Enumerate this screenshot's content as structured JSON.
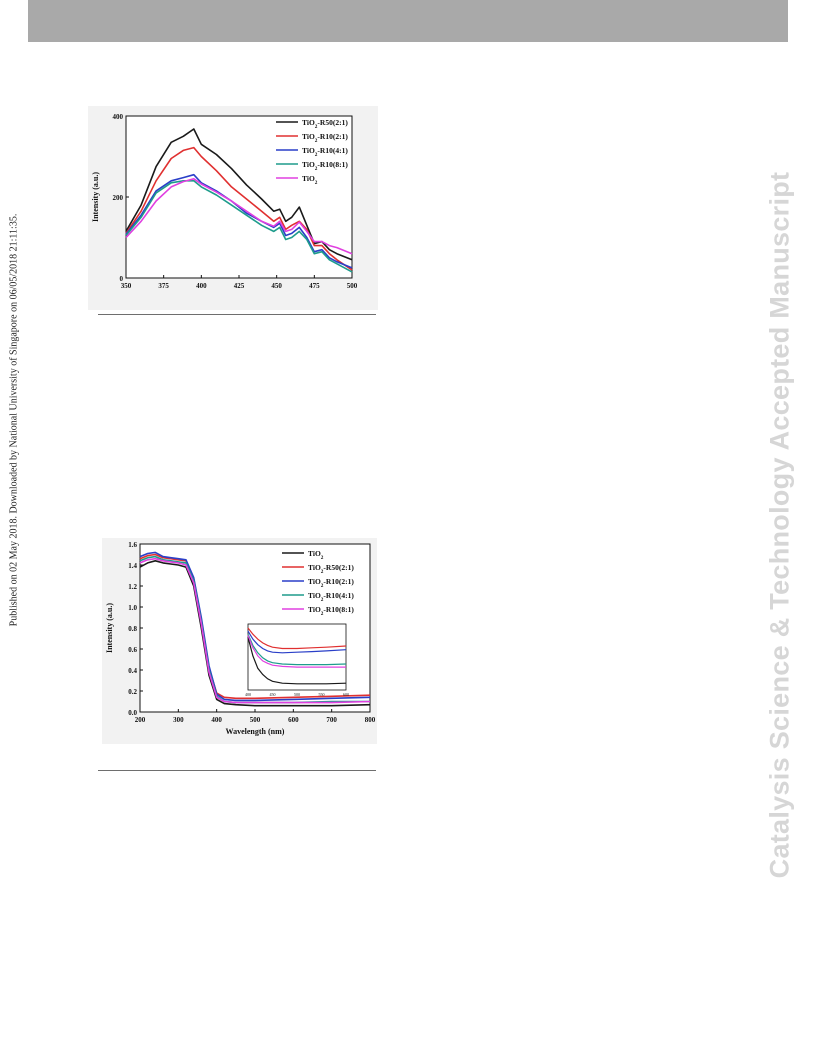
{
  "page": {
    "side_note": "Published on 02 May 2018. Downloaded by National University of Singapore on 06/05/2018 21:11:35.",
    "watermark": "Catalysis Science & Technology Accepted Manuscript"
  },
  "chart_data": [
    {
      "type": "line",
      "title": "",
      "xlabel": "",
      "ylabel": "Intensity (a.u.)",
      "xlim": [
        350,
        500
      ],
      "ylim": [
        0,
        400
      ],
      "xticks": [
        350,
        375,
        400,
        425,
        450,
        475,
        500
      ],
      "yticks": [
        0,
        200,
        400
      ],
      "legend_position": "top-right",
      "x": [
        350,
        360,
        370,
        380,
        388,
        395,
        400,
        410,
        420,
        430,
        440,
        448,
        452,
        456,
        460,
        465,
        470,
        475,
        480,
        485,
        490,
        500
      ],
      "series": [
        {
          "name": "TiO2-R50(2:1)",
          "color": "#1a1a1a",
          "values": [
            115,
            180,
            275,
            335,
            350,
            368,
            330,
            305,
            270,
            230,
            195,
            165,
            170,
            140,
            150,
            175,
            130,
            85,
            90,
            70,
            60,
            45
          ]
        },
        {
          "name": "TiO2-R10(2:1)",
          "color": "#e03030",
          "values": [
            110,
            165,
            240,
            295,
            315,
            322,
            300,
            265,
            225,
            195,
            165,
            140,
            150,
            120,
            130,
            140,
            120,
            80,
            80,
            60,
            45,
            20
          ]
        },
        {
          "name": "TiO2-R10(4:1)",
          "color": "#2a3fc8",
          "values": [
            108,
            155,
            215,
            240,
            248,
            255,
            235,
            215,
            190,
            160,
            140,
            125,
            135,
            105,
            110,
            125,
            100,
            65,
            70,
            50,
            40,
            25
          ]
        },
        {
          "name": "TiO2-R10(8:1)",
          "color": "#1e9c8c",
          "values": [
            105,
            150,
            210,
            235,
            240,
            240,
            225,
            205,
            180,
            155,
            130,
            115,
            125,
            95,
            100,
            115,
            95,
            60,
            65,
            45,
            35,
            15
          ]
        },
        {
          "name": "TiO2",
          "color": "#e040e0",
          "values": [
            100,
            140,
            190,
            225,
            238,
            245,
            232,
            212,
            190,
            165,
            140,
            128,
            140,
            115,
            120,
            138,
            115,
            90,
            90,
            80,
            75,
            60
          ]
        }
      ]
    },
    {
      "type": "line",
      "title": "",
      "xlabel": "Wavelength (nm)",
      "ylabel": "Intensity (a.u.)",
      "xlim": [
        200,
        800
      ],
      "ylim": [
        0,
        1.6
      ],
      "xticks": [
        200,
        300,
        400,
        500,
        600,
        700,
        800
      ],
      "yticks": [
        0.0,
        0.2,
        0.4,
        0.6,
        0.8,
        1.0,
        1.2,
        1.4,
        1.6
      ],
      "legend_position": "top-right",
      "x": [
        200,
        220,
        240,
        260,
        280,
        300,
        320,
        340,
        360,
        380,
        400,
        420,
        450,
        500,
        600,
        700,
        800
      ],
      "series": [
        {
          "name": "TiO2",
          "color": "#1a1a1a",
          "values": [
            1.38,
            1.42,
            1.44,
            1.42,
            1.41,
            1.4,
            1.38,
            1.2,
            0.8,
            0.35,
            0.12,
            0.08,
            0.07,
            0.06,
            0.06,
            0.06,
            0.07
          ]
        },
        {
          "name": "TiO2-R50(2:1)",
          "color": "#e03030",
          "values": [
            1.46,
            1.49,
            1.5,
            1.47,
            1.46,
            1.45,
            1.44,
            1.27,
            0.88,
            0.42,
            0.18,
            0.14,
            0.13,
            0.13,
            0.14,
            0.15,
            0.16
          ]
        },
        {
          "name": "TiO2-R10(2:1)",
          "color": "#2a3fc8",
          "values": [
            1.48,
            1.51,
            1.52,
            1.48,
            1.47,
            1.46,
            1.45,
            1.28,
            0.9,
            0.44,
            0.17,
            0.12,
            0.11,
            0.11,
            0.12,
            0.13,
            0.14
          ]
        },
        {
          "name": "TiO2-R10(4:1)",
          "color": "#1e9c8c",
          "values": [
            1.44,
            1.47,
            1.48,
            1.45,
            1.44,
            1.43,
            1.42,
            1.25,
            0.86,
            0.4,
            0.15,
            0.1,
            0.09,
            0.09,
            0.09,
            0.1,
            0.1
          ]
        },
        {
          "name": "TiO2-R10(8:1)",
          "color": "#e040e0",
          "values": [
            1.42,
            1.45,
            1.46,
            1.44,
            1.43,
            1.42,
            1.4,
            1.23,
            0.84,
            0.38,
            0.14,
            0.1,
            0.09,
            0.09,
            0.09,
            0.09,
            0.1
          ]
        }
      ],
      "inset": {
        "xticks": [
          400,
          450,
          500,
          550,
          600
        ],
        "x": [
          400,
          410,
          420,
          430,
          440,
          450,
          470,
          500,
          530,
          560,
          600
        ],
        "series": [
          {
            "name": "TiO2",
            "values": [
              0.85,
              0.55,
              0.35,
              0.25,
              0.18,
              0.14,
              0.11,
              0.1,
              0.1,
              0.1,
              0.11
            ]
          },
          {
            "name": "TiO2-R50(2:1)",
            "values": [
              1.0,
              0.9,
              0.82,
              0.76,
              0.72,
              0.69,
              0.67,
              0.67,
              0.68,
              0.69,
              0.71
            ]
          },
          {
            "name": "TiO2-R10(2:1)",
            "values": [
              0.95,
              0.82,
              0.73,
              0.67,
              0.63,
              0.61,
              0.6,
              0.61,
              0.62,
              0.63,
              0.65
            ]
          },
          {
            "name": "TiO2-R10(4:1)",
            "values": [
              0.9,
              0.72,
              0.6,
              0.52,
              0.47,
              0.44,
              0.42,
              0.41,
              0.41,
              0.41,
              0.42
            ]
          },
          {
            "name": "TiO2-R10(8:1)",
            "values": [
              0.88,
              0.68,
              0.55,
              0.47,
              0.43,
              0.4,
              0.38,
              0.37,
              0.37,
              0.37,
              0.37
            ]
          }
        ]
      }
    }
  ]
}
